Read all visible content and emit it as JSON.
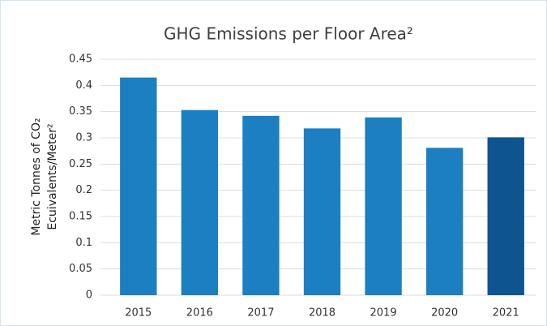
{
  "chart_data": {
    "type": "bar",
    "title": "GHG Emissions per Floor Area²",
    "y_label": [
      "Metric Tonnes of CO₂",
      "Ecuivalents/Meter²"
    ],
    "categories": [
      "2015",
      "2016",
      "2017",
      "2018",
      "2019",
      "2020",
      "2021"
    ],
    "values": [
      0.415,
      0.353,
      0.342,
      0.318,
      0.339,
      0.281,
      0.301
    ],
    "colors": [
      "#1b7fc2",
      "#1b7fc2",
      "#1b7fc2",
      "#1b7fc2",
      "#1b7fc2",
      "#1b7fc2",
      "#0d5490"
    ],
    "ylim": [
      0,
      0.45
    ],
    "yticks": [
      0,
      0.05,
      0.1,
      0.15,
      0.2,
      0.25,
      0.3,
      0.35,
      0.4,
      0.45
    ],
    "grid": true
  }
}
